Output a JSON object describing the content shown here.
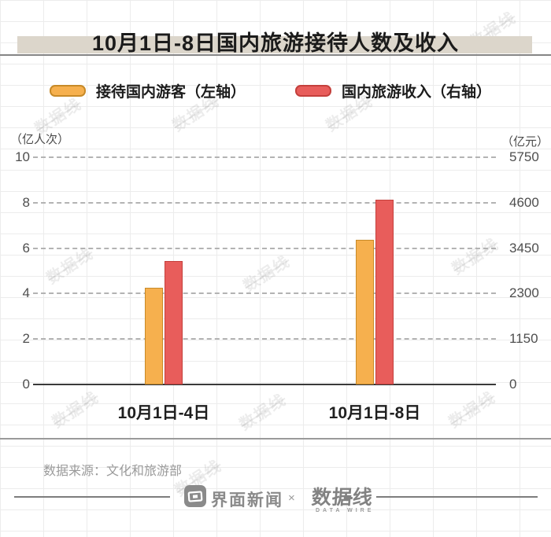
{
  "title": "10月1日-8日国内旅游接待人数及收入",
  "legend": [
    {
      "label": "接待国内游客（左轴）",
      "color": "#F6B04E",
      "border": "#C78A28"
    },
    {
      "label": "国内旅游收入（右轴）",
      "color": "#E85D5B",
      "border": "#C4403C"
    }
  ],
  "chart_data": {
    "type": "bar",
    "categories": [
      "10月1日-4日",
      "10月1日-8日"
    ],
    "series": [
      {
        "name": "接待国内游客（左轴）",
        "axis": "left",
        "unit": "亿人次",
        "color": "#F6B04E",
        "border": "#C78A28",
        "values": [
          4.25,
          6.37
        ]
      },
      {
        "name": "国内旅游收入（右轴）",
        "axis": "right",
        "unit": "亿元",
        "color": "#E85D5B",
        "border": "#C4403C",
        "values": [
          3120,
          4666
        ]
      }
    ],
    "left_axis": {
      "unit_label": "（亿人次）",
      "ticks": [
        10,
        8,
        6,
        4,
        2,
        0
      ],
      "max": 10
    },
    "right_axis": {
      "unit_label": "（亿元）",
      "ticks": [
        5750,
        4600,
        3450,
        2300,
        1150,
        0
      ],
      "max": 5750
    },
    "grid": "horizontal-dashed",
    "legend_position": "top"
  },
  "source": "数据来源：文化和旅游部",
  "footer": {
    "brand1": "界面新闻",
    "separator": "×",
    "brand2": "数据线",
    "brand2_sub": "DATA WIRE"
  },
  "watermark": "数据线"
}
